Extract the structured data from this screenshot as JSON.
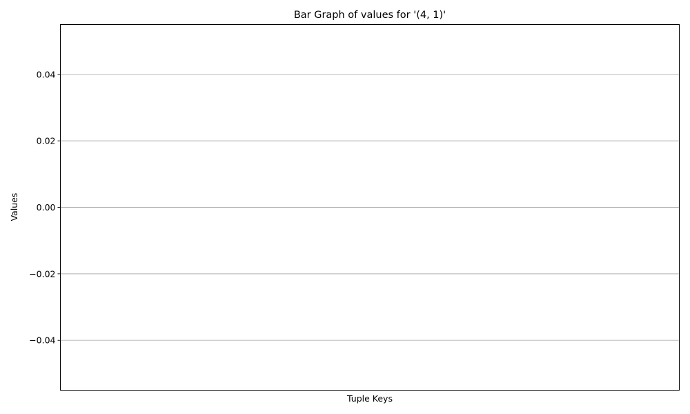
{
  "chart_data": {
    "type": "bar",
    "title": "Bar Graph of values for '(4, 1)'",
    "xlabel": "Tuple Keys",
    "ylabel": "Values",
    "categories": [],
    "values": [],
    "ylim": [
      -0.055,
      0.055
    ],
    "yticks": [
      -0.04,
      -0.02,
      0.0,
      0.02,
      0.04
    ],
    "ytick_labels": [
      "−0.04",
      "−0.02",
      "0.00",
      "0.02",
      "0.04"
    ],
    "grid": "y-axis",
    "legend": "none"
  }
}
